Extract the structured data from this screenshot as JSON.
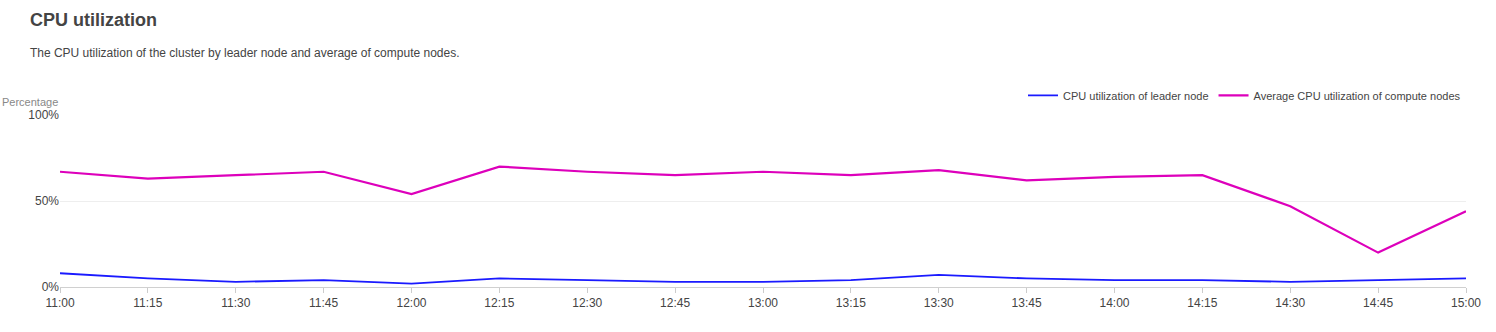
{
  "chart_data": {
    "type": "line",
    "title": "CPU utilization",
    "subtitle": "The CPU utilization of the cluster by leader node and average of compute nodes.",
    "ylabel": "Percentage",
    "categories": [
      "11:00",
      "11:15",
      "11:30",
      "11:45",
      "12:00",
      "12:15",
      "12:30",
      "12:45",
      "13:00",
      "13:15",
      "13:30",
      "13:45",
      "14:00",
      "14:15",
      "14:30",
      "14:45",
      "15:00"
    ],
    "series": [
      {
        "name": "CPU utilization of leader node",
        "color": "#1a1aff",
        "values": [
          8,
          5,
          3,
          4,
          2,
          5,
          4,
          3,
          3,
          4,
          7,
          5,
          4,
          4,
          3,
          4,
          5
        ]
      },
      {
        "name": "Average CPU utilization of compute nodes",
        "color": "#dd00bb",
        "values": [
          67,
          63,
          65,
          67,
          54,
          70,
          67,
          65,
          67,
          65,
          68,
          62,
          64,
          65,
          47,
          20,
          44
        ]
      }
    ],
    "ylim": [
      0,
      100
    ],
    "yticks": [
      {
        "value": 0,
        "label": "0%"
      },
      {
        "value": 50,
        "label": "50%"
      },
      {
        "value": 100,
        "label": "100%"
      }
    ],
    "grid": true,
    "legend": "upper right"
  }
}
